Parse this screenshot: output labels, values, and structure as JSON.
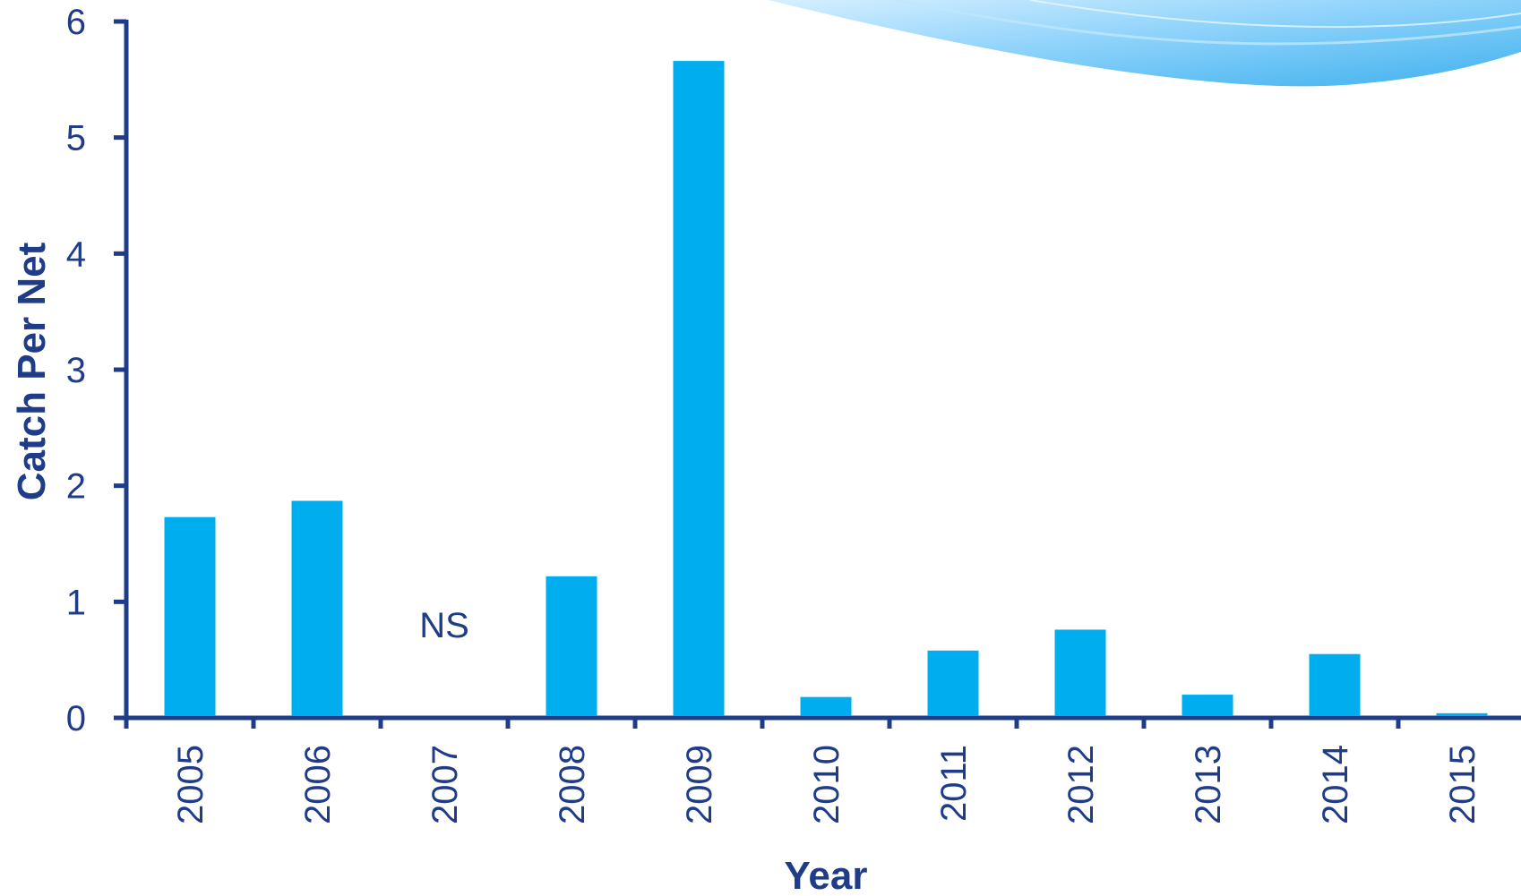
{
  "chart_data": {
    "type": "bar",
    "title": "",
    "xlabel": "Year",
    "ylabel": "Catch Per Net",
    "categories": [
      "2005",
      "2006",
      "2007",
      "2008",
      "2009",
      "2010",
      "2011",
      "2012",
      "2013",
      "2014",
      "2015"
    ],
    "values": [
      1.73,
      1.87,
      null,
      1.22,
      5.66,
      0.18,
      0.58,
      0.76,
      0.2,
      0.55,
      0.04
    ],
    "ylim": [
      0,
      6
    ],
    "yticks": [
      "0",
      "1",
      "2",
      "3",
      "4",
      "5",
      "6"
    ],
    "grid": false,
    "annotations": [
      {
        "category": "2007",
        "text": "NS"
      }
    ],
    "colors": {
      "bar": "#00aeef",
      "axis": "#1f3c88",
      "text": "#1f3c88",
      "wave_light": "#cfeafc",
      "wave_mid": "#8fd3fb",
      "wave_dark": "#4cb8f2"
    }
  }
}
